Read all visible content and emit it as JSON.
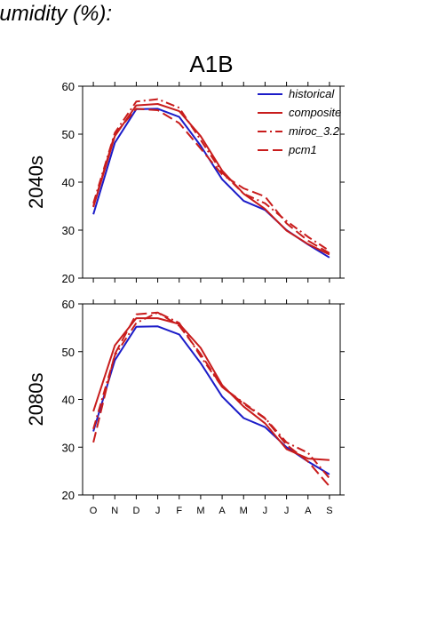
{
  "header": "humidity (%):",
  "chart_data": {
    "type": "line",
    "title": "A1B",
    "x": [
      "O",
      "N",
      "D",
      "J",
      "F",
      "M",
      "A",
      "M",
      "J",
      "J",
      "A",
      "S"
    ],
    "ylim": [
      20,
      60
    ],
    "yticks": [
      20,
      30,
      40,
      50,
      60
    ],
    "legend": {
      "placement": "top-right",
      "entries": [
        "historical",
        "composite",
        "miroc_3.2",
        "pcm1"
      ]
    },
    "colors": {
      "historical": "#1c1cc8",
      "models": "#c81c1c"
    },
    "panels": [
      {
        "label": "2040s",
        "series": [
          {
            "name": "historical",
            "style": "solid",
            "color": "#1c1cc8",
            "values": [
              33.3,
              48.2,
              55.2,
              55.3,
              53.6,
              47.6,
              40.6,
              36.1,
              34.2,
              30.0,
              27.0,
              24.3
            ]
          },
          {
            "name": "composite",
            "style": "solid",
            "color": "#c81c1c",
            "values": [
              34.8,
              49.6,
              56.0,
              56.3,
              54.8,
              49.6,
              42.4,
              37.6,
              34.4,
              29.9,
              27.1,
              24.9
            ]
          },
          {
            "name": "miroc_3.2",
            "style": "dashdot",
            "color": "#c81c1c",
            "values": [
              35.6,
              50.3,
              56.8,
              57.3,
              55.5,
              48.8,
              42.0,
              37.6,
              35.6,
              31.9,
              28.6,
              25.7
            ]
          },
          {
            "name": "pcm1",
            "style": "longdash",
            "color": "#c81c1c",
            "values": [
              35.0,
              50.0,
              55.3,
              55.0,
              52.3,
              47.0,
              41.6,
              38.7,
              37.0,
              31.4,
              27.8,
              25.2
            ]
          }
        ]
      },
      {
        "label": "2080s",
        "series": [
          {
            "name": "historical",
            "style": "solid",
            "color": "#1c1cc8",
            "values": [
              33.3,
              48.2,
              55.2,
              55.3,
              53.6,
              47.6,
              40.6,
              36.1,
              34.2,
              30.0,
              27.0,
              24.3
            ]
          },
          {
            "name": "composite",
            "style": "solid",
            "color": "#c81c1c",
            "values": [
              37.5,
              51.3,
              57.0,
              57.0,
              55.8,
              50.8,
              43.0,
              38.5,
              35.0,
              29.6,
              27.6,
              27.3
            ]
          },
          {
            "name": "miroc_3.2",
            "style": "dashdot",
            "color": "#c81c1c",
            "values": [
              33.8,
              49.2,
              56.0,
              58.2,
              56.0,
              49.0,
              42.6,
              39.3,
              36.1,
              31.0,
              28.8,
              23.5
            ]
          },
          {
            "name": "pcm1",
            "style": "longdash",
            "color": "#c81c1c",
            "values": [
              31.0,
              49.5,
              57.8,
              58.2,
              55.4,
              49.5,
              42.6,
              39.1,
              36.0,
              30.5,
              27.0,
              21.8
            ]
          }
        ]
      }
    ]
  }
}
